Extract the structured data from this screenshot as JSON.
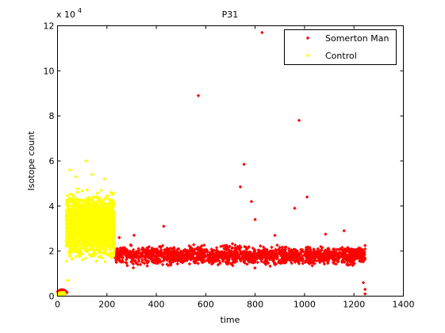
{
  "chart_data": {
    "type": "scatter",
    "title": "P31",
    "xlabel": "time",
    "ylabel": "Isotope count",
    "y_exponent_label": "x 10",
    "y_exponent": "4",
    "y_scale": 10000,
    "xlim": [
      0,
      1400
    ],
    "ylim": [
      0,
      120000
    ],
    "xticks": [
      0,
      200,
      400,
      600,
      800,
      1000,
      1200,
      1400
    ],
    "yticks": [
      0,
      2,
      4,
      6,
      8,
      10,
      12
    ],
    "grid": false,
    "legend_position": "top-right",
    "legend": [
      "Somerton Man",
      "Control"
    ],
    "series": [
      {
        "name": "Somerton Man",
        "color": "#ff0000",
        "marker": "diamond",
        "bands": [
          {
            "x_start": 0,
            "x_end": 40,
            "y_min": 0,
            "y_max": 4000,
            "n": 40
          },
          {
            "x_start": 230,
            "x_end": 1245,
            "y_min": 12000,
            "y_max": 24000,
            "n": 1800
          }
        ],
        "outliers": [
          {
            "x": 250,
            "y": 26000
          },
          {
            "x": 310,
            "y": 27000
          },
          {
            "x": 430,
            "y": 31000
          },
          {
            "x": 570,
            "y": 89000
          },
          {
            "x": 740,
            "y": 48500
          },
          {
            "x": 755,
            "y": 58500
          },
          {
            "x": 785,
            "y": 42000
          },
          {
            "x": 800,
            "y": 34000
          },
          {
            "x": 828,
            "y": 117000
          },
          {
            "x": 880,
            "y": 27000
          },
          {
            "x": 960,
            "y": 39000
          },
          {
            "x": 978,
            "y": 78000
          },
          {
            "x": 1010,
            "y": 44000
          },
          {
            "x": 1085,
            "y": 27500
          },
          {
            "x": 1160,
            "y": 29000
          },
          {
            "x": 1245,
            "y": 3000
          },
          {
            "x": 1245,
            "y": 1000
          },
          {
            "x": 1238,
            "y": 6000
          }
        ]
      },
      {
        "name": "Control",
        "color": "#ffff00",
        "marker": "dot",
        "bands": [
          {
            "x_start": 0,
            "x_end": 30,
            "y_min": 0,
            "y_max": 2000,
            "n": 60
          },
          {
            "x_start": 35,
            "x_end": 230,
            "y_min": 12000,
            "y_max": 50000,
            "n": 2400
          }
        ],
        "outliers": [
          {
            "x": 50,
            "y": 56000
          },
          {
            "x": 115,
            "y": 60000
          },
          {
            "x": 140,
            "y": 54000
          },
          {
            "x": 75,
            "y": 53000
          },
          {
            "x": 190,
            "y": 52000
          },
          {
            "x": 40,
            "y": 7000
          }
        ]
      }
    ]
  }
}
